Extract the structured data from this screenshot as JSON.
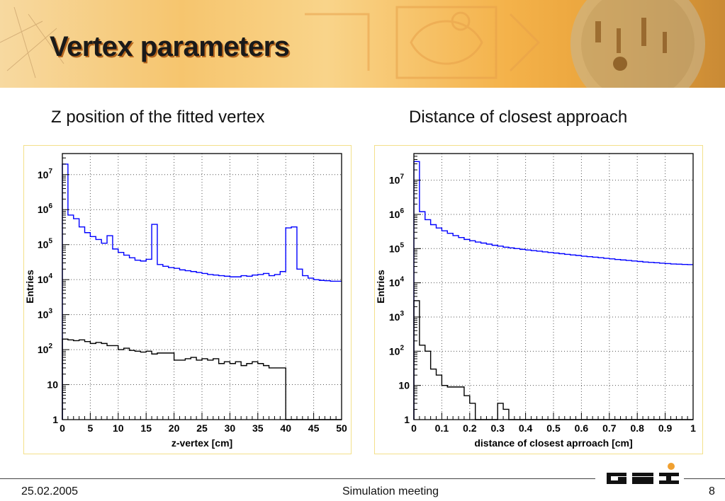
{
  "slide": {
    "title": "Vertex parameters",
    "subtitle_left": "Z position of the fitted vertex",
    "subtitle_right": "Distance of closest approach"
  },
  "footer": {
    "date": "25.02.2005",
    "event": "Simulation meeting",
    "page": "8"
  },
  "logo": {
    "text": "GSI",
    "accent": "#f0a030"
  },
  "colors": {
    "series_blue": "#0000ff",
    "series_black": "#000000",
    "frame": "#f3e08a"
  },
  "chart_data": [
    {
      "type": "histogram",
      "xlabel": "z-vertex [cm]",
      "ylabel": "Entries",
      "xlim": [
        0,
        50
      ],
      "ylim": [
        1,
        40000000
      ],
      "yscale": "log",
      "xticks": [
        0,
        5,
        10,
        15,
        20,
        25,
        30,
        35,
        40,
        45,
        50
      ],
      "xtick_labels": [
        "0",
        "5",
        "10",
        "15",
        "20",
        "25",
        "30",
        "35",
        "40",
        "45",
        "50"
      ],
      "yticks": [
        1,
        10,
        100,
        1000,
        10000,
        100000,
        1000000,
        10000000
      ],
      "ytick_labels": [
        {
          "base": "1",
          "exp": ""
        },
        {
          "base": "10",
          "exp": ""
        },
        {
          "base": "10",
          "exp": "2"
        },
        {
          "base": "10",
          "exp": "3"
        },
        {
          "base": "10",
          "exp": "4"
        },
        {
          "base": "10",
          "exp": "5"
        },
        {
          "base": "10",
          "exp": "6"
        },
        {
          "base": "10",
          "exp": "7"
        }
      ],
      "grid": true,
      "bin_edges_range": [
        0,
        50
      ],
      "series": [
        {
          "color": "#0000ff",
          "values": [
            20000000,
            700000,
            550000,
            320000,
            220000,
            170000,
            140000,
            110000,
            180000,
            75000,
            60000,
            50000,
            42000,
            36000,
            34000,
            38000,
            380000,
            27000,
            24000,
            22000,
            21000,
            19000,
            18000,
            17000,
            16000,
            15000,
            14000,
            13500,
            13000,
            12500,
            12000,
            12000,
            13000,
            12500,
            13500,
            14000,
            15000,
            13000,
            14000,
            17000,
            300000,
            320000,
            20000,
            13000,
            11000,
            10000,
            9500,
            9300,
            9000,
            9000
          ]
        },
        {
          "color": "#000000",
          "values": [
            200,
            190,
            180,
            190,
            170,
            150,
            160,
            150,
            130,
            130,
            100,
            110,
            95,
            90,
            85,
            90,
            75,
            80,
            80,
            80,
            50,
            50,
            55,
            60,
            50,
            55,
            50,
            55,
            40,
            45,
            40,
            45,
            35,
            40,
            45,
            40,
            35,
            30,
            30,
            30,
            0,
            0,
            0,
            0,
            0,
            0,
            0,
            0,
            0,
            0
          ]
        }
      ]
    },
    {
      "type": "histogram",
      "xlabel": "distance of closest aprroach [cm]",
      "ylabel": "Entries",
      "xlim": [
        0,
        1
      ],
      "ylim": [
        1,
        60000000
      ],
      "yscale": "log",
      "xticks": [
        0,
        0.1,
        0.2,
        0.3,
        0.4,
        0.5,
        0.6,
        0.7,
        0.8,
        0.9,
        1
      ],
      "xtick_labels": [
        "0",
        "0.1",
        "0.2",
        "0.3",
        "0.4",
        "0.5",
        "0.6",
        "0.7",
        "0.8",
        "0.9",
        "1"
      ],
      "yticks": [
        1,
        10,
        100,
        1000,
        10000,
        100000,
        1000000,
        10000000
      ],
      "ytick_labels": [
        {
          "base": "1",
          "exp": ""
        },
        {
          "base": "10",
          "exp": ""
        },
        {
          "base": "10",
          "exp": "2"
        },
        {
          "base": "10",
          "exp": "3"
        },
        {
          "base": "10",
          "exp": "4"
        },
        {
          "base": "10",
          "exp": "5"
        },
        {
          "base": "10",
          "exp": "6"
        },
        {
          "base": "10",
          "exp": "7"
        }
      ],
      "grid": true,
      "bin_edges_range": [
        0,
        1
      ],
      "series": [
        {
          "color": "#0000ff",
          "values": [
            35000000,
            1200000,
            700000,
            500000,
            400000,
            330000,
            280000,
            240000,
            210000,
            185000,
            170000,
            155000,
            145000,
            135000,
            125000,
            118000,
            110000,
            105000,
            100000,
            95000,
            91000,
            87000,
            84000,
            80000,
            77000,
            74000,
            71000,
            68000,
            65000,
            63000,
            60000,
            58000,
            56000,
            54000,
            52000,
            50000,
            48000,
            46500,
            45000,
            43500,
            42000,
            40500,
            39500,
            38500,
            37500,
            36500,
            35500,
            35000,
            34500,
            34000
          ]
        },
        {
          "color": "#000000",
          "values": [
            3000,
            150,
            100,
            30,
            20,
            10,
            9,
            9,
            9,
            5,
            3,
            1,
            0,
            0,
            0,
            3,
            2,
            0,
            0,
            0,
            0,
            0,
            0,
            0,
            0,
            0,
            0,
            0,
            0,
            0,
            0,
            0,
            0,
            0,
            0,
            0,
            0,
            0,
            0,
            0,
            0,
            0,
            0,
            0,
            0,
            0,
            0,
            0,
            0,
            0
          ]
        }
      ]
    }
  ]
}
